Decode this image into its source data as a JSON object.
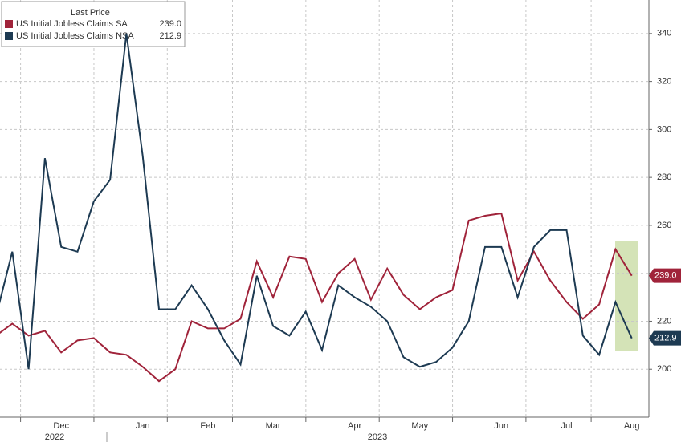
{
  "chart_data": {
    "type": "line",
    "legend_title": "Last Price",
    "categories": [
      null,
      null,
      null,
      null,
      "Dec",
      null,
      null,
      null,
      null,
      "Jan",
      null,
      null,
      null,
      "Feb",
      null,
      null,
      null,
      "Mar",
      null,
      null,
      null,
      null,
      "Apr",
      null,
      null,
      null,
      "May",
      null,
      null,
      null,
      null,
      "Jun",
      null,
      null,
      null,
      "Jul",
      null,
      null,
      null,
      "Aug"
    ],
    "x_year_labels": [
      "2022",
      "2023"
    ],
    "series": [
      {
        "name": "US Initial Jobless Claims SA",
        "color": "#a0233a",
        "last_label": "239.0",
        "values": [
          214,
          219,
          214,
          216,
          207,
          212,
          213,
          207,
          206,
          201,
          195,
          200,
          220,
          217,
          217,
          221,
          245,
          230,
          247,
          246,
          228,
          240,
          246,
          229,
          242,
          231,
          225,
          230,
          233,
          262,
          264,
          265,
          237,
          249,
          237,
          228,
          221,
          227,
          250,
          239.0
        ]
      },
      {
        "name": "US Initial Jobless Claims NSA",
        "color": "#1d3a52",
        "last_label": "212.9",
        "values": [
          222,
          249,
          200,
          288,
          251,
          249,
          270,
          279,
          340,
          289,
          225,
          225,
          235,
          225,
          212,
          202,
          239,
          218,
          214,
          224,
          208,
          235,
          230,
          226,
          220,
          205,
          201,
          203,
          209,
          220,
          251,
          251,
          230,
          251,
          258,
          258,
          214,
          206,
          228,
          212.9
        ]
      }
    ],
    "ylim": [
      180,
      354
    ],
    "yticks": [
      200,
      220,
      240,
      260,
      280,
      300,
      320,
      340
    ],
    "grid": true
  }
}
